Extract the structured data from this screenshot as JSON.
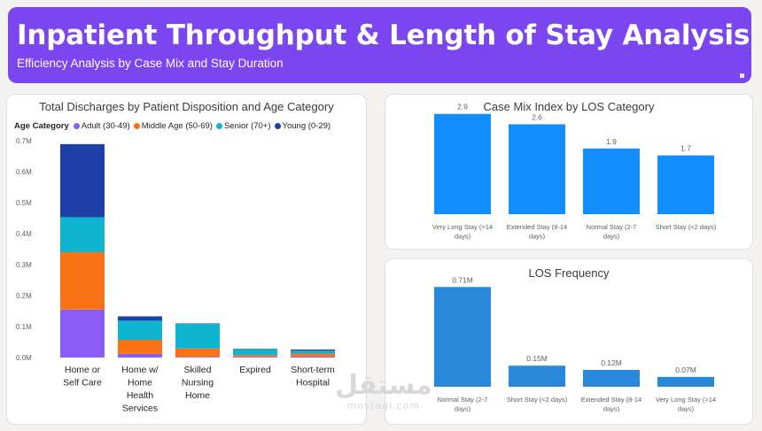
{
  "header": {
    "title": "Inpatient Throughput & Length of Stay Analysis",
    "subtitle": "Efficiency Analysis by Case Mix and Stay Duration"
  },
  "colors": {
    "banner": "#7b45f0",
    "adult": "#8b5cf6",
    "middle": "#f97316",
    "senior": "#0fb5d0",
    "young": "#1f3fa8",
    "cmi_bar": "#118dff",
    "freq_bar": "#2a88db"
  },
  "watermark": {
    "logo_text": "مستقل",
    "site_text": "mostaql.com"
  },
  "chart_data": [
    {
      "type": "bar",
      "stacked": true,
      "title": "Total Discharges by Patient Disposition and Age Category",
      "legend_title": "Age Category",
      "legend_position": "top-left",
      "categories": [
        [
          "Home or",
          "Self Care"
        ],
        [
          "Home w/",
          "Home",
          "Health",
          "Services"
        ],
        [
          "Skilled",
          "Nursing",
          "Home"
        ],
        [
          "Expired"
        ],
        [
          "Short-term",
          "Hospital"
        ]
      ],
      "series": [
        {
          "name": "Adult (30-49)",
          "color": "#8b5cf6",
          "values": [
            155000,
            12000,
            2000,
            2000,
            3000
          ]
        },
        {
          "name": "Middle Age (50-69)",
          "color": "#f97316",
          "values": [
            185000,
            45000,
            27000,
            6000,
            10000
          ]
        },
        {
          "name": "Senior (70+)",
          "color": "#0fb5d0",
          "values": [
            113000,
            62000,
            80000,
            19000,
            9000
          ]
        },
        {
          "name": "Young (0-29)",
          "color": "#1f3fa8",
          "values": [
            236000,
            14000,
            1000,
            1000,
            4000
          ]
        }
      ],
      "yticks": [
        "0.0M",
        "0.1M",
        "0.2M",
        "0.3M",
        "0.4M",
        "0.5M",
        "0.6M",
        "0.7M"
      ],
      "ylim": [
        0,
        700000
      ],
      "grid": false
    },
    {
      "type": "bar",
      "title": "Case Mix Index by LOS Category",
      "categories": [
        [
          "Very Long Stay (>14",
          "days)"
        ],
        [
          "Extended Stay (8-14",
          "days)"
        ],
        [
          "Normal Stay (2-7",
          "days)"
        ],
        [
          "Short Stay (<2 days)"
        ]
      ],
      "values": [
        2.9,
        2.6,
        1.9,
        1.7
      ],
      "data_labels": [
        "2.9",
        "2.6",
        "1.9",
        "1.7"
      ],
      "ylim": [
        0,
        3.2
      ],
      "color": "#118dff"
    },
    {
      "type": "bar",
      "title": "LOS Frequency",
      "categories": [
        [
          "Normal Stay (2-7",
          "days)"
        ],
        [
          "Short Stay (<2 days)"
        ],
        [
          "Extended Stay (8-14",
          "days)"
        ],
        [
          "Very Long Stay (>14",
          "days)"
        ]
      ],
      "values": [
        0.71,
        0.15,
        0.12,
        0.07
      ],
      "data_labels": [
        "0.71M",
        "0.15M",
        "0.12M",
        "0.07M"
      ],
      "ylim": [
        0,
        0.8
      ],
      "color": "#2a88db"
    }
  ]
}
